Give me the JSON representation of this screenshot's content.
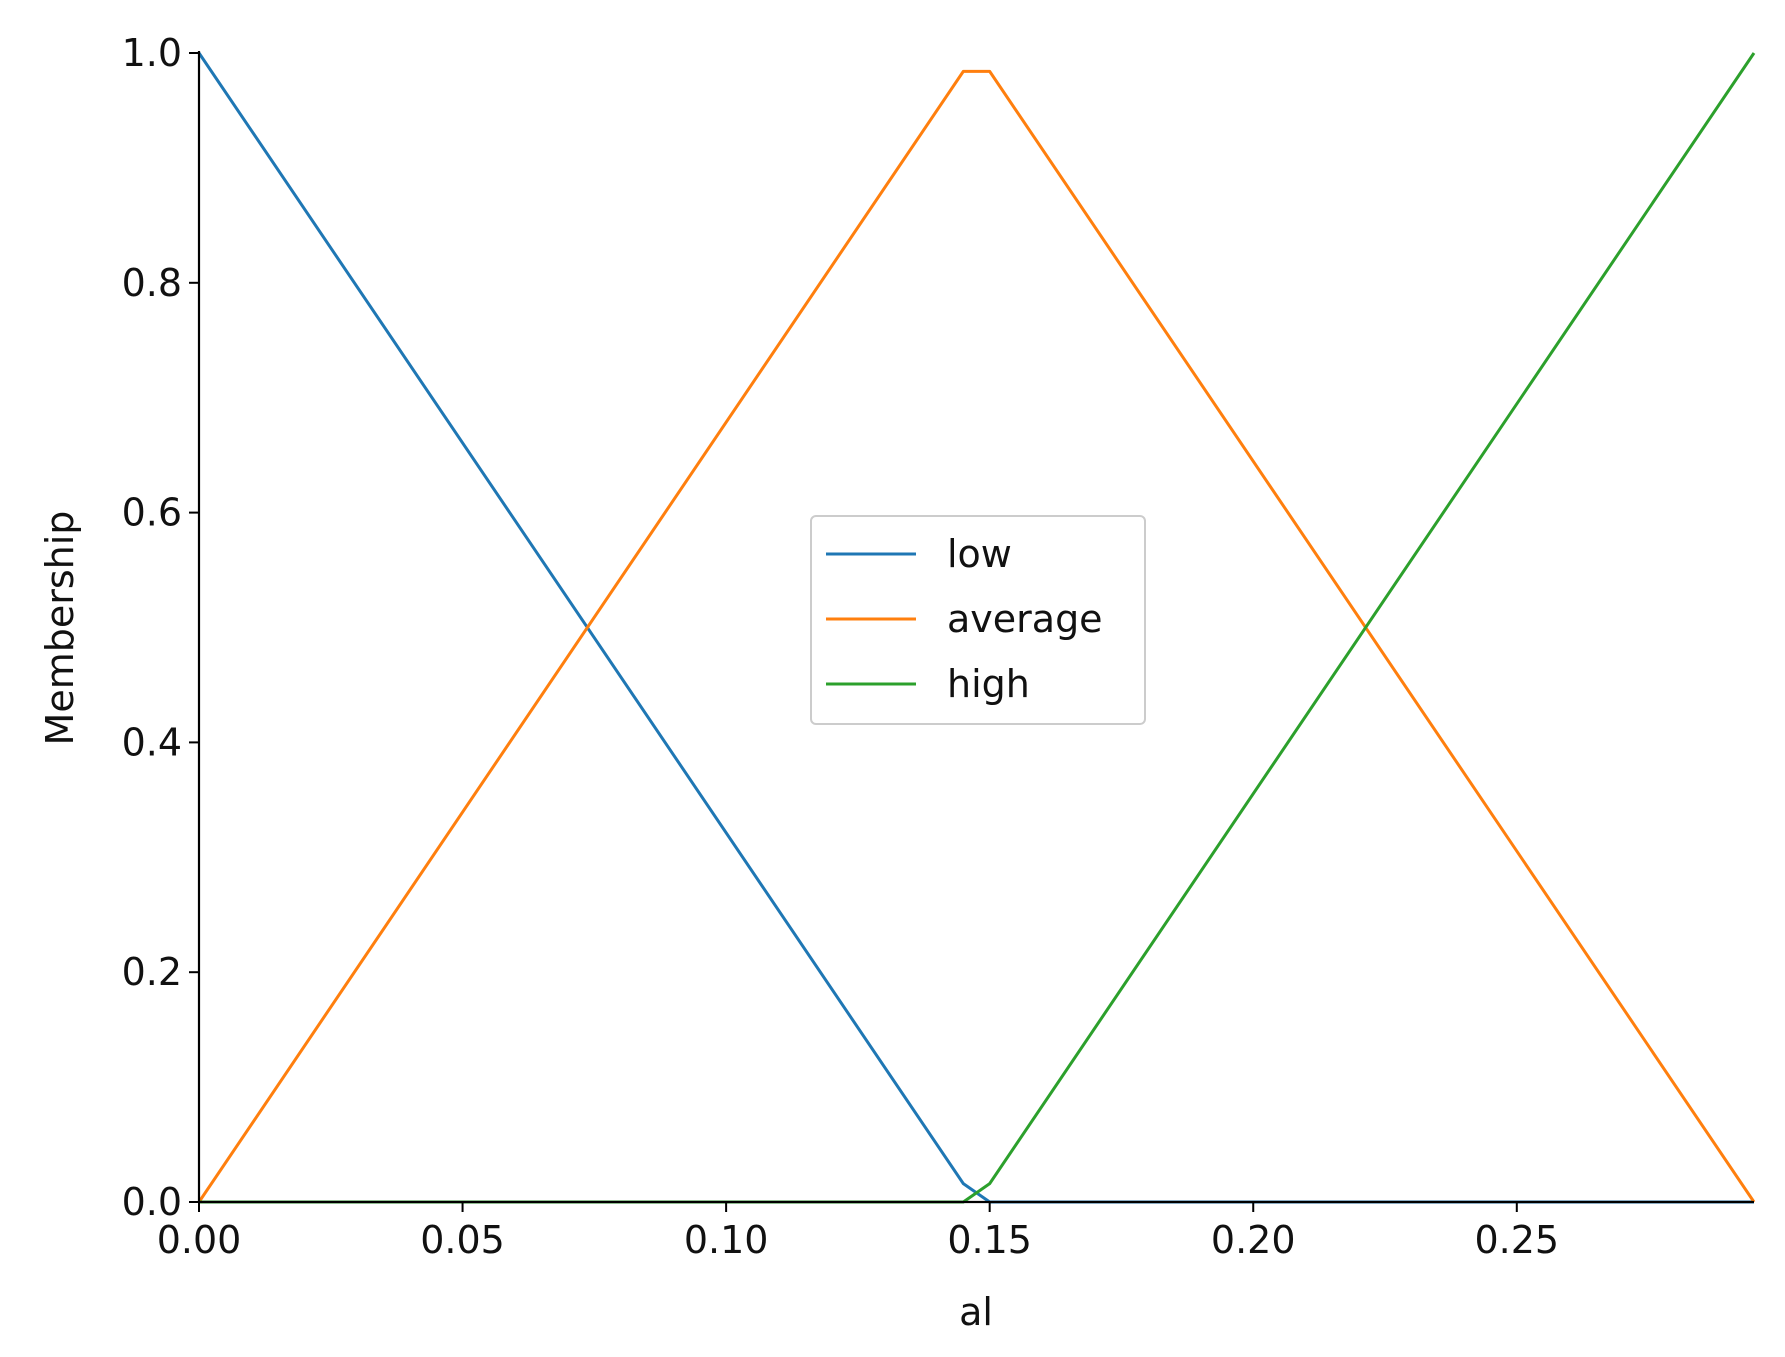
{
  "chart_data": {
    "type": "line",
    "xlabel": "al",
    "ylabel": "Membership",
    "xlim": [
      0,
      0.295
    ],
    "ylim": [
      0,
      1.0
    ],
    "x_ticks": [
      "0.00",
      "0.05",
      "0.10",
      "0.15",
      "0.20",
      "0.25"
    ],
    "x_tick_values": [
      0,
      0.05,
      0.1,
      0.15,
      0.2,
      0.25
    ],
    "y_ticks": [
      "0.0",
      "0.2",
      "0.4",
      "0.6",
      "0.8",
      "1.0"
    ],
    "y_tick_values": [
      0,
      0.2,
      0.4,
      0.6,
      0.8,
      1.0
    ],
    "grid": false,
    "legend_position": "center",
    "series": [
      {
        "name": "low",
        "color": "#1f77b4",
        "x": [
          0,
          0.145,
          0.15,
          0.295
        ],
        "y": [
          1.0,
          0.016,
          0.0,
          0.0
        ]
      },
      {
        "name": "average",
        "color": "#ff7f0e",
        "x": [
          0,
          0.145,
          0.15,
          0.295
        ],
        "y": [
          0.0,
          0.984,
          0.984,
          0.0
        ]
      },
      {
        "name": "high",
        "color": "#2ca02c",
        "x": [
          0,
          0.145,
          0.15,
          0.295
        ],
        "y": [
          0.0,
          0.0,
          0.016,
          1.0
        ]
      }
    ]
  }
}
